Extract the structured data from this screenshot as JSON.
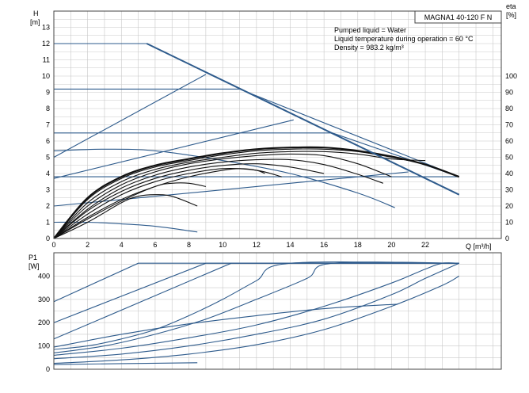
{
  "chart_data": [
    {
      "type": "line",
      "title": "MAGNA1 40-120 F N",
      "ylabel": "H",
      "ylabel_unit": "[m]",
      "y2label": "eta",
      "y2label_unit": "[%]",
      "xlabel": "Q [m³/h]",
      "xlim": [
        0,
        26.5
      ],
      "ylim": [
        0,
        14
      ],
      "y2lim": [
        0,
        140
      ],
      "grid": true,
      "x_ticks": [
        "0",
        "2",
        "4",
        "6",
        "8",
        "10",
        "12",
        "14",
        "16",
        "18",
        "20",
        "22"
      ],
      "y_ticks": [
        "0",
        "1",
        "2",
        "3",
        "4",
        "5",
        "6",
        "7",
        "8",
        "9",
        "10",
        "11",
        "12",
        "13"
      ],
      "y2_ticks": [
        "0",
        "10",
        "20",
        "30",
        "40",
        "50",
        "60",
        "70",
        "80",
        "90",
        "100"
      ],
      "annotations": [
        "Pumped liquid = Water",
        "Liquid temperature during operation = 60 °C",
        "Density = 983.2 kg/m³"
      ],
      "series": [
        {
          "group": "pump-curve",
          "points": [
            [
              0,
              12
            ],
            [
              5.5,
              12
            ],
            [
              24,
              2.7
            ]
          ]
        },
        {
          "group": "pump-curve",
          "points": [
            [
              0,
              9.2
            ],
            [
              11,
              9.2
            ],
            [
              24,
              3.8
            ]
          ]
        },
        {
          "group": "pump-curve",
          "points": [
            [
              0,
              6.5
            ],
            [
              16.5,
              6.5
            ],
            [
              24,
              3.8
            ]
          ]
        },
        {
          "group": "pump-curve",
          "points": [
            [
              0,
              3.8
            ],
            [
              24,
              3.8
            ]
          ]
        },
        {
          "group": "pump-curve",
          "points": [
            [
              0,
              5.0
            ],
            [
              9,
              10.1
            ]
          ]
        },
        {
          "group": "pump-curve",
          "points": [
            [
              0,
              3.7
            ],
            [
              14.2,
              7.3
            ]
          ]
        },
        {
          "group": "pump-curve",
          "points": [
            [
              0,
              2.0
            ],
            [
              21,
              4.1
            ]
          ]
        },
        {
          "group": "pump-curve",
          "points": [
            [
              0,
              5.4
            ],
            [
              3,
              5.5
            ],
            [
              6,
              5.4
            ],
            [
              10,
              4.8
            ],
            [
              14,
              4.0
            ],
            [
              18,
              2.8
            ],
            [
              20.2,
              1.9
            ]
          ]
        },
        {
          "group": "pump-curve",
          "points": [
            [
              0,
              1.0
            ],
            [
              2,
              1.0
            ],
            [
              4,
              0.9
            ],
            [
              6,
              0.75
            ],
            [
              8.5,
              0.4
            ]
          ]
        },
        {
          "group": "efficiency",
          "points": [
            [
              0,
              0
            ],
            [
              2,
              25
            ],
            [
              4,
              38
            ],
            [
              6,
              45
            ],
            [
              8,
              49
            ],
            [
              10,
              52.5
            ],
            [
              12,
              55
            ],
            [
              14,
              56
            ],
            [
              16,
              56
            ],
            [
              18,
              54
            ],
            [
              20,
              50.5
            ],
            [
              22,
              45.5
            ],
            [
              24,
              38
            ]
          ]
        },
        {
          "group": "efficiency",
          "points": [
            [
              0,
              0
            ],
            [
              2,
              24
            ],
            [
              4,
              37
            ],
            [
              6,
              44
            ],
            [
              8,
              48
            ],
            [
              10,
              51.5
            ],
            [
              12,
              54
            ],
            [
              14,
              55
            ],
            [
              16,
              55
            ],
            [
              18,
              53.5
            ],
            [
              20,
              50
            ],
            [
              21,
              48
            ]
          ]
        },
        {
          "group": "efficiency",
          "points": [
            [
              0,
              0
            ],
            [
              2,
              22
            ],
            [
              4,
              35
            ],
            [
              6,
              42.5
            ],
            [
              8,
              47
            ],
            [
              10,
              50
            ],
            [
              12,
              52.5
            ],
            [
              14,
              53.5
            ],
            [
              16,
              53.5
            ],
            [
              18,
              52
            ],
            [
              20,
              49
            ],
            [
              22,
              48
            ]
          ]
        },
        {
          "group": "efficiency",
          "points": [
            [
              0,
              0
            ],
            [
              2,
              20
            ],
            [
              4,
              33
            ],
            [
              6,
              41
            ],
            [
              8,
              46
            ],
            [
              10,
              49
            ],
            [
              12,
              51
            ],
            [
              14,
              52
            ],
            [
              16,
              51
            ],
            [
              18,
              46
            ],
            [
              20,
              38
            ]
          ]
        },
        {
          "group": "efficiency",
          "points": [
            [
              0,
              0
            ],
            [
              2,
              18
            ],
            [
              4,
              31
            ],
            [
              6,
              39
            ],
            [
              8,
              44
            ],
            [
              10,
              47
            ],
            [
              12,
              48.5
            ],
            [
              14,
              48.5
            ],
            [
              16,
              45.5
            ],
            [
              18,
              39.5
            ],
            [
              19.5,
              34
            ]
          ]
        },
        {
          "group": "efficiency",
          "points": [
            [
              0,
              0
            ],
            [
              2,
              17
            ],
            [
              4,
              29
            ],
            [
              6,
              37
            ],
            [
              8,
              42
            ],
            [
              10,
              45
            ],
            [
              12,
              46
            ],
            [
              14,
              44
            ],
            [
              16,
              40
            ]
          ]
        },
        {
          "group": "efficiency",
          "points": [
            [
              0,
              0
            ],
            [
              2,
              15
            ],
            [
              4,
              27
            ],
            [
              6,
              35
            ],
            [
              8,
              40
            ],
            [
              10,
              43
            ],
            [
              12,
              42
            ],
            [
              13.5,
              38
            ]
          ]
        },
        {
          "group": "efficiency",
          "points": [
            [
              0,
              0
            ],
            [
              2,
              12
            ],
            [
              4,
              23
            ],
            [
              6,
              32
            ],
            [
              7,
              34
            ],
            [
              8,
              34
            ],
            [
              9,
              32
            ]
          ]
        },
        {
          "group": "efficiency",
          "points": [
            [
              0,
              0
            ],
            [
              2,
              10
            ],
            [
              4,
              22
            ],
            [
              5,
              26
            ],
            [
              6,
              27
            ],
            [
              7,
              26
            ],
            [
              8.5,
              20
            ]
          ]
        },
        {
          "group": "efficiency",
          "points": [
            [
              0,
              0
            ],
            [
              2,
              13
            ],
            [
              4,
              24
            ],
            [
              6,
              32
            ],
            [
              8,
              38
            ],
            [
              10,
              42
            ],
            [
              11,
              43
            ],
            [
              12,
              42
            ],
            [
              12.5,
              40
            ]
          ]
        }
      ]
    },
    {
      "type": "line",
      "ylabel": "P1",
      "ylabel_unit": "[W]",
      "xlim": [
        0,
        26.5
      ],
      "ylim": [
        0,
        500
      ],
      "grid": true,
      "y_ticks": [
        "0",
        "100",
        "200",
        "300",
        "400"
      ],
      "series": [
        {
          "points": [
            [
              0,
              290
            ],
            [
              5,
              455
            ],
            [
              24,
              455
            ]
          ]
        },
        {
          "points": [
            [
              0,
              200
            ],
            [
              9,
              455
            ],
            [
              24,
              455
            ]
          ]
        },
        {
          "points": [
            [
              0,
              130
            ],
            [
              10.5,
              455
            ],
            [
              24,
              455
            ]
          ]
        },
        {
          "points": [
            [
              0,
              85
            ],
            [
              2,
              100
            ],
            [
              4,
              130
            ],
            [
              6,
              170
            ],
            [
              8,
              230
            ],
            [
              10,
              300
            ],
            [
              12,
              380
            ],
            [
              14,
              455
            ],
            [
              24,
              455
            ]
          ]
        },
        {
          "points": [
            [
              0,
              70
            ],
            [
              3,
              100
            ],
            [
              6,
              150
            ],
            [
              9,
              215
            ],
            [
              12,
              300
            ],
            [
              15,
              390
            ],
            [
              16.5,
              455
            ],
            [
              24,
              455
            ]
          ]
        },
        {
          "points": [
            [
              0,
              60
            ],
            [
              4,
              90
            ],
            [
              8,
              135
            ],
            [
              12,
              190
            ],
            [
              16,
              270
            ],
            [
              20,
              370
            ],
            [
              22,
              430
            ],
            [
              23,
              455
            ],
            [
              24,
              455
            ]
          ]
        },
        {
          "points": [
            [
              0,
              45
            ],
            [
              4,
              65
            ],
            [
              8,
              100
            ],
            [
              12,
              150
            ],
            [
              16,
              215
            ],
            [
              20,
              320
            ],
            [
              22,
              390
            ],
            [
              24,
              455
            ]
          ]
        },
        {
          "points": [
            [
              0,
              25
            ],
            [
              4,
              40
            ],
            [
              8,
              65
            ],
            [
              12,
              105
            ],
            [
              16,
              170
            ],
            [
              20,
              270
            ],
            [
              23,
              360
            ],
            [
              24,
              400
            ]
          ]
        },
        {
          "points": [
            [
              0,
              95
            ],
            [
              4,
              150
            ],
            [
              8,
              195
            ],
            [
              12,
              230
            ],
            [
              16,
              260
            ],
            [
              20,
              278
            ],
            [
              20.2,
              278
            ]
          ]
        },
        {
          "points": [
            [
              0,
              20
            ],
            [
              4,
              24
            ],
            [
              8.5,
              28
            ]
          ]
        }
      ]
    }
  ]
}
